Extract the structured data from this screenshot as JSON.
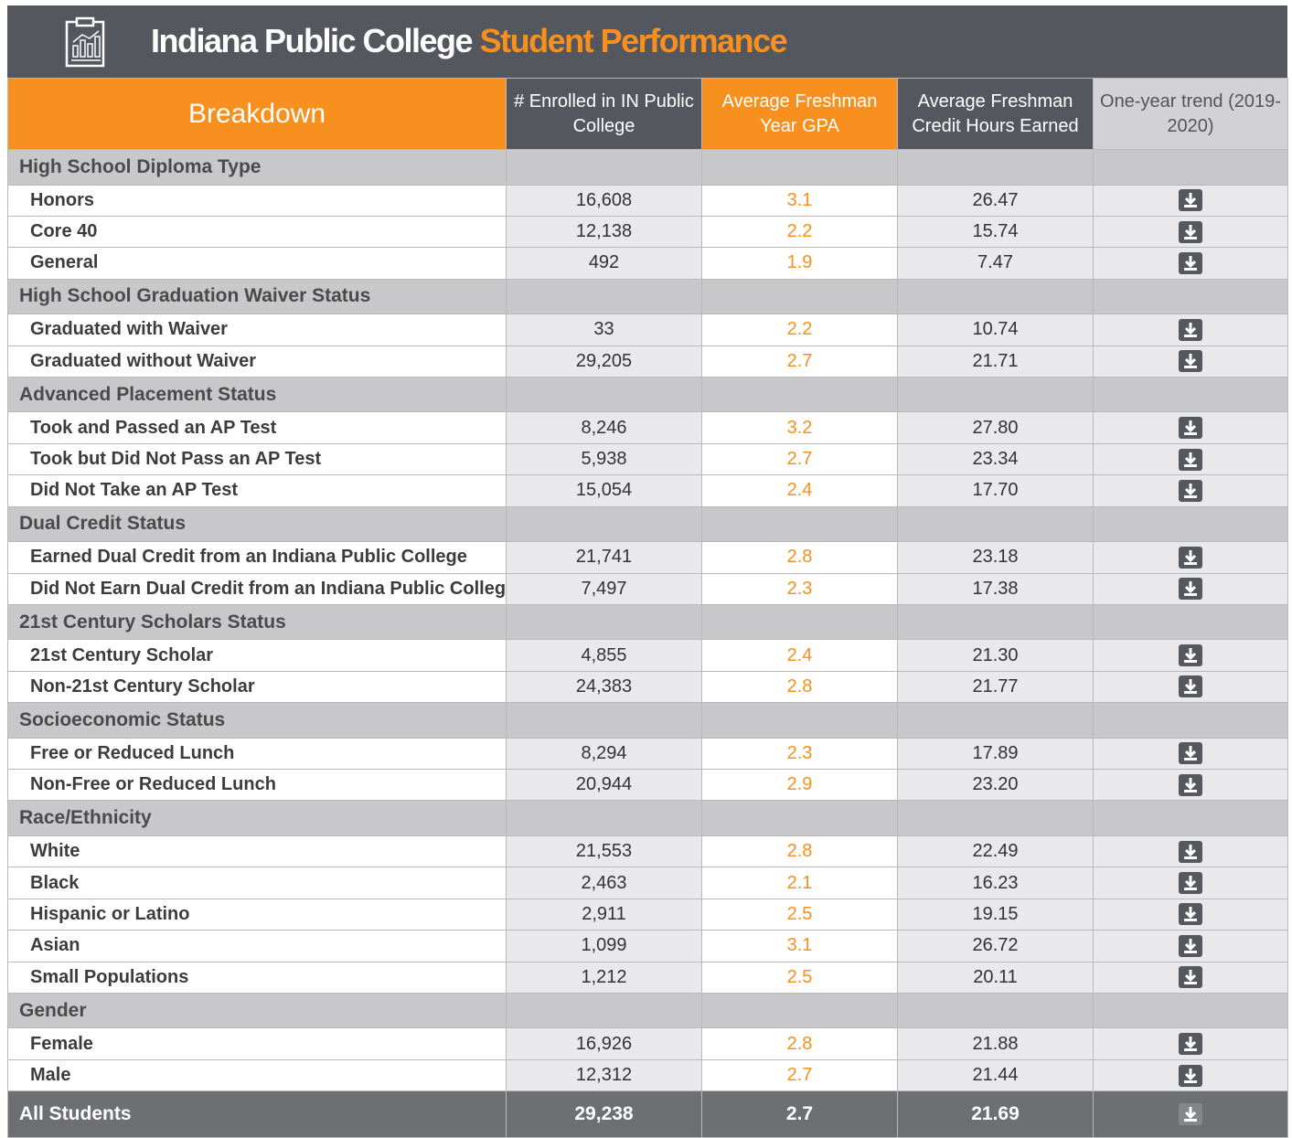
{
  "header": {
    "title": "Indiana Public College",
    "title_highlight": "Student Performance"
  },
  "table": {
    "columns": [
      "Breakdown",
      "# Enrolled in IN Public College",
      "Average Freshman Year GPA",
      "Average Freshman Credit Hours Earned",
      "One-year trend (2019-2020)"
    ],
    "groups": [
      {
        "label": "High School Diploma Type",
        "rows": [
          {
            "label": "Honors",
            "enrolled": "16,608",
            "gpa": "3.1",
            "credit_hours": "26.47"
          },
          {
            "label": "Core 40",
            "enrolled": "12,138",
            "gpa": "2.2",
            "credit_hours": "15.74"
          },
          {
            "label": "General",
            "enrolled": "492",
            "gpa": "1.9",
            "credit_hours": "7.47"
          }
        ]
      },
      {
        "label": "High School Graduation Waiver Status",
        "rows": [
          {
            "label": "Graduated with Waiver",
            "enrolled": "33",
            "gpa": "2.2",
            "credit_hours": "10.74"
          },
          {
            "label": "Graduated without Waiver",
            "enrolled": "29,205",
            "gpa": "2.7",
            "credit_hours": "21.71"
          }
        ]
      },
      {
        "label": "Advanced Placement Status",
        "rows": [
          {
            "label": "Took and Passed an AP Test",
            "enrolled": "8,246",
            "gpa": "3.2",
            "credit_hours": "27.80"
          },
          {
            "label": "Took but Did Not Pass an AP Test",
            "enrolled": "5,938",
            "gpa": "2.7",
            "credit_hours": "23.34"
          },
          {
            "label": "Did Not Take an AP Test",
            "enrolled": "15,054",
            "gpa": "2.4",
            "credit_hours": "17.70"
          }
        ]
      },
      {
        "label": "Dual Credit Status",
        "rows": [
          {
            "label": "Earned Dual Credit from an Indiana Public College",
            "enrolled": "21,741",
            "gpa": "2.8",
            "credit_hours": "23.18"
          },
          {
            "label": "Did Not Earn Dual Credit from an Indiana Public College",
            "enrolled": "7,497",
            "gpa": "2.3",
            "credit_hours": "17.38"
          }
        ]
      },
      {
        "label": "21st Century Scholars Status",
        "rows": [
          {
            "label": "21st Century Scholar",
            "enrolled": "4,855",
            "gpa": "2.4",
            "credit_hours": "21.30"
          },
          {
            "label": "Non-21st Century Scholar",
            "enrolled": "24,383",
            "gpa": "2.8",
            "credit_hours": "21.77"
          }
        ]
      },
      {
        "label": "Socioeconomic Status",
        "rows": [
          {
            "label": "Free or Reduced Lunch",
            "enrolled": "8,294",
            "gpa": "2.3",
            "credit_hours": "17.89"
          },
          {
            "label": "Non-Free or Reduced Lunch",
            "enrolled": "20,944",
            "gpa": "2.9",
            "credit_hours": "23.20"
          }
        ]
      },
      {
        "label": "Race/Ethnicity",
        "rows": [
          {
            "label": "White",
            "enrolled": "21,553",
            "gpa": "2.8",
            "credit_hours": "22.49"
          },
          {
            "label": "Black",
            "enrolled": "2,463",
            "gpa": "2.1",
            "credit_hours": "16.23"
          },
          {
            "label": "Hispanic or Latino",
            "enrolled": "2,911",
            "gpa": "2.5",
            "credit_hours": "19.15"
          },
          {
            "label": "Asian",
            "enrolled": "1,099",
            "gpa": "3.1",
            "credit_hours": "26.72"
          },
          {
            "label": "Small Populations",
            "enrolled": "1,212",
            "gpa": "2.5",
            "credit_hours": "20.11"
          }
        ]
      },
      {
        "label": "Gender",
        "rows": [
          {
            "label": "Female",
            "enrolled": "16,926",
            "gpa": "2.8",
            "credit_hours": "21.88"
          },
          {
            "label": "Male",
            "enrolled": "12,312",
            "gpa": "2.7",
            "credit_hours": "21.44"
          }
        ]
      }
    ],
    "total": {
      "label": "All Students",
      "enrolled": "29,238",
      "gpa": "2.7",
      "credit_hours": "21.69"
    }
  }
}
